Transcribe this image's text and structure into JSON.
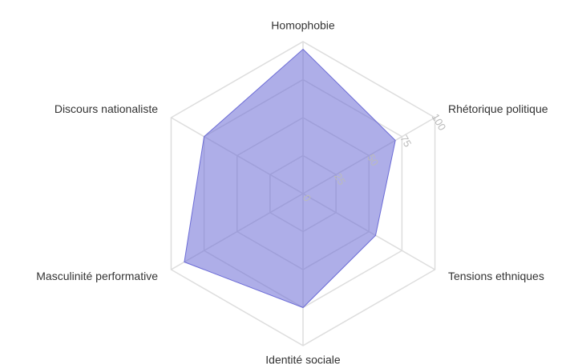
{
  "chart_data": {
    "type": "radar",
    "categories": [
      "Homophobie",
      "Rhétorique politique",
      "Tensions ethniques",
      "Identité sociale",
      "Masculinité performative",
      "Discours nationaliste"
    ],
    "values": [
      95,
      70,
      55,
      75,
      90,
      75
    ],
    "color": "#6b6bd6",
    "rlim": [
      0,
      100
    ],
    "rticks": [
      0,
      25,
      50,
      75,
      100
    ],
    "grid": true
  }
}
